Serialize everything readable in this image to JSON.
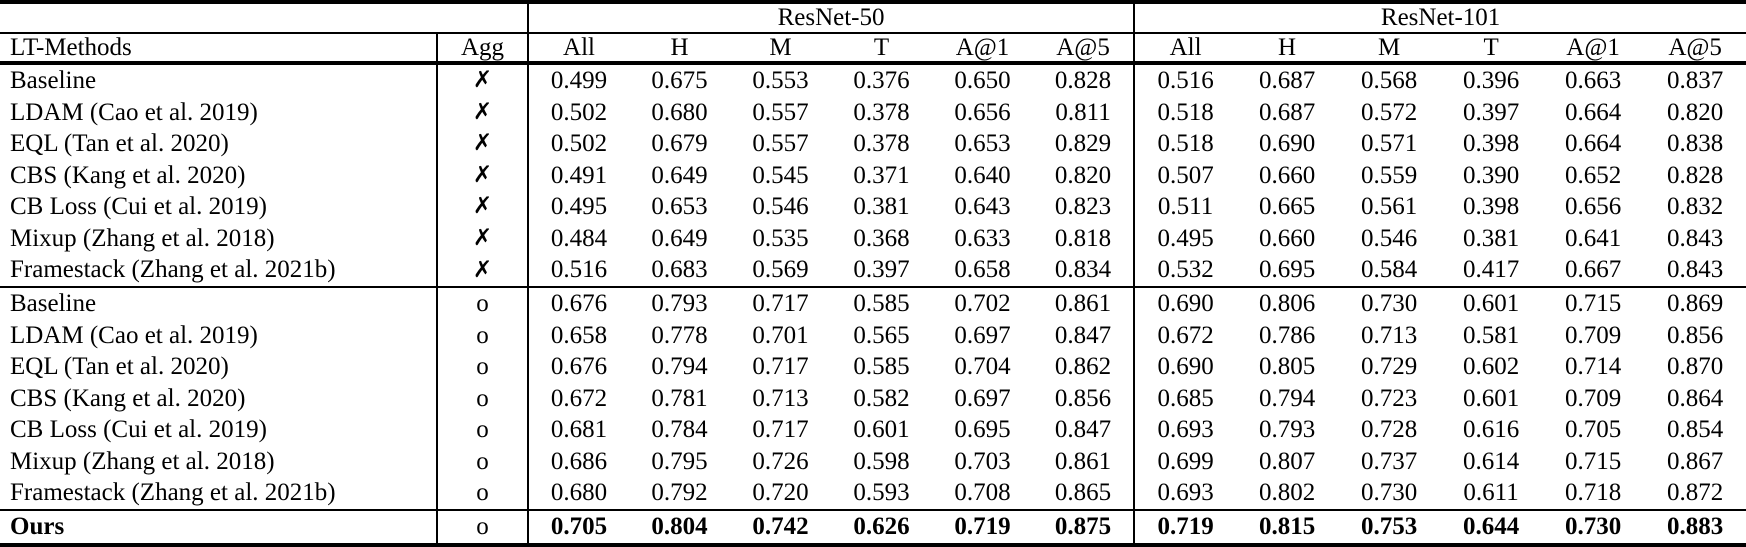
{
  "table": {
    "group_headers": [
      {
        "label": "",
        "span": 2
      },
      {
        "label": "ResNet-50",
        "span": 6
      },
      {
        "label": "ResNet-101",
        "span": 6
      }
    ],
    "column_headers": [
      "LT-Methods",
      "Agg",
      "All",
      "H",
      "M",
      "T",
      "A@1",
      "A@5",
      "All",
      "H",
      "M",
      "T",
      "A@1",
      "A@5"
    ],
    "agg_symbols": {
      "no": "✗",
      "yes": "o"
    },
    "text_color": "#000000",
    "background_color": "#ffffff",
    "sections": [
      {
        "name": "no-aggregation",
        "rows": [
          {
            "method": "Baseline",
            "agg": "✗",
            "bold": false,
            "values": [
              "0.499",
              "0.675",
              "0.553",
              "0.376",
              "0.650",
              "0.828",
              "0.516",
              "0.687",
              "0.568",
              "0.396",
              "0.663",
              "0.837"
            ]
          },
          {
            "method": "LDAM (Cao et al. 2019)",
            "agg": "✗",
            "bold": false,
            "values": [
              "0.502",
              "0.680",
              "0.557",
              "0.378",
              "0.656",
              "0.811",
              "0.518",
              "0.687",
              "0.572",
              "0.397",
              "0.664",
              "0.820"
            ]
          },
          {
            "method": "EQL (Tan et al. 2020)",
            "agg": "✗",
            "bold": false,
            "values": [
              "0.502",
              "0.679",
              "0.557",
              "0.378",
              "0.653",
              "0.829",
              "0.518",
              "0.690",
              "0.571",
              "0.398",
              "0.664",
              "0.838"
            ]
          },
          {
            "method": "CBS (Kang et al. 2020)",
            "agg": "✗",
            "bold": false,
            "values": [
              "0.491",
              "0.649",
              "0.545",
              "0.371",
              "0.640",
              "0.820",
              "0.507",
              "0.660",
              "0.559",
              "0.390",
              "0.652",
              "0.828"
            ]
          },
          {
            "method": "CB Loss (Cui et al. 2019)",
            "agg": "✗",
            "bold": false,
            "values": [
              "0.495",
              "0.653",
              "0.546",
              "0.381",
              "0.643",
              "0.823",
              "0.511",
              "0.665",
              "0.561",
              "0.398",
              "0.656",
              "0.832"
            ]
          },
          {
            "method": "Mixup (Zhang et al. 2018)",
            "agg": "✗",
            "bold": false,
            "values": [
              "0.484",
              "0.649",
              "0.535",
              "0.368",
              "0.633",
              "0.818",
              "0.495",
              "0.660",
              "0.546",
              "0.381",
              "0.641",
              "0.843"
            ]
          },
          {
            "method": "Framestack (Zhang et al. 2021b)",
            "agg": "✗",
            "bold": false,
            "values": [
              "0.516",
              "0.683",
              "0.569",
              "0.397",
              "0.658",
              "0.834",
              "0.532",
              "0.695",
              "0.584",
              "0.417",
              "0.667",
              "0.843"
            ]
          }
        ]
      },
      {
        "name": "with-aggregation",
        "rows": [
          {
            "method": "Baseline",
            "agg": "o",
            "bold": false,
            "values": [
              "0.676",
              "0.793",
              "0.717",
              "0.585",
              "0.702",
              "0.861",
              "0.690",
              "0.806",
              "0.730",
              "0.601",
              "0.715",
              "0.869"
            ]
          },
          {
            "method": "LDAM (Cao et al. 2019)",
            "agg": "o",
            "bold": false,
            "values": [
              "0.658",
              "0.778",
              "0.701",
              "0.565",
              "0.697",
              "0.847",
              "0.672",
              "0.786",
              "0.713",
              "0.581",
              "0.709",
              "0.856"
            ]
          },
          {
            "method": "EQL (Tan et al. 2020)",
            "agg": "o",
            "bold": false,
            "values": [
              "0.676",
              "0.794",
              "0.717",
              "0.585",
              "0.704",
              "0.862",
              "0.690",
              "0.805",
              "0.729",
              "0.602",
              "0.714",
              "0.870"
            ]
          },
          {
            "method": "CBS (Kang et al. 2020)",
            "agg": "o",
            "bold": false,
            "values": [
              "0.672",
              "0.781",
              "0.713",
              "0.582",
              "0.697",
              "0.856",
              "0.685",
              "0.794",
              "0.723",
              "0.601",
              "0.709",
              "0.864"
            ]
          },
          {
            "method": "CB Loss (Cui et al. 2019)",
            "agg": "o",
            "bold": false,
            "values": [
              "0.681",
              "0.784",
              "0.717",
              "0.601",
              "0.695",
              "0.847",
              "0.693",
              "0.793",
              "0.728",
              "0.616",
              "0.705",
              "0.854"
            ]
          },
          {
            "method": "Mixup (Zhang et al. 2018)",
            "agg": "o",
            "bold": false,
            "values": [
              "0.686",
              "0.795",
              "0.726",
              "0.598",
              "0.703",
              "0.861",
              "0.699",
              "0.807",
              "0.737",
              "0.614",
              "0.715",
              "0.867"
            ]
          },
          {
            "method": "Framestack (Zhang et al. 2021b)",
            "agg": "o",
            "bold": false,
            "values": [
              "0.680",
              "0.792",
              "0.720",
              "0.593",
              "0.708",
              "0.865",
              "0.693",
              "0.802",
              "0.730",
              "0.611",
              "0.718",
              "0.872"
            ]
          }
        ]
      },
      {
        "name": "ours",
        "rows": [
          {
            "method": "Ours",
            "agg": "o",
            "bold": true,
            "values": [
              "0.705",
              "0.804",
              "0.742",
              "0.626",
              "0.719",
              "0.875",
              "0.719",
              "0.815",
              "0.753",
              "0.644",
              "0.730",
              "0.883"
            ]
          }
        ]
      }
    ]
  }
}
